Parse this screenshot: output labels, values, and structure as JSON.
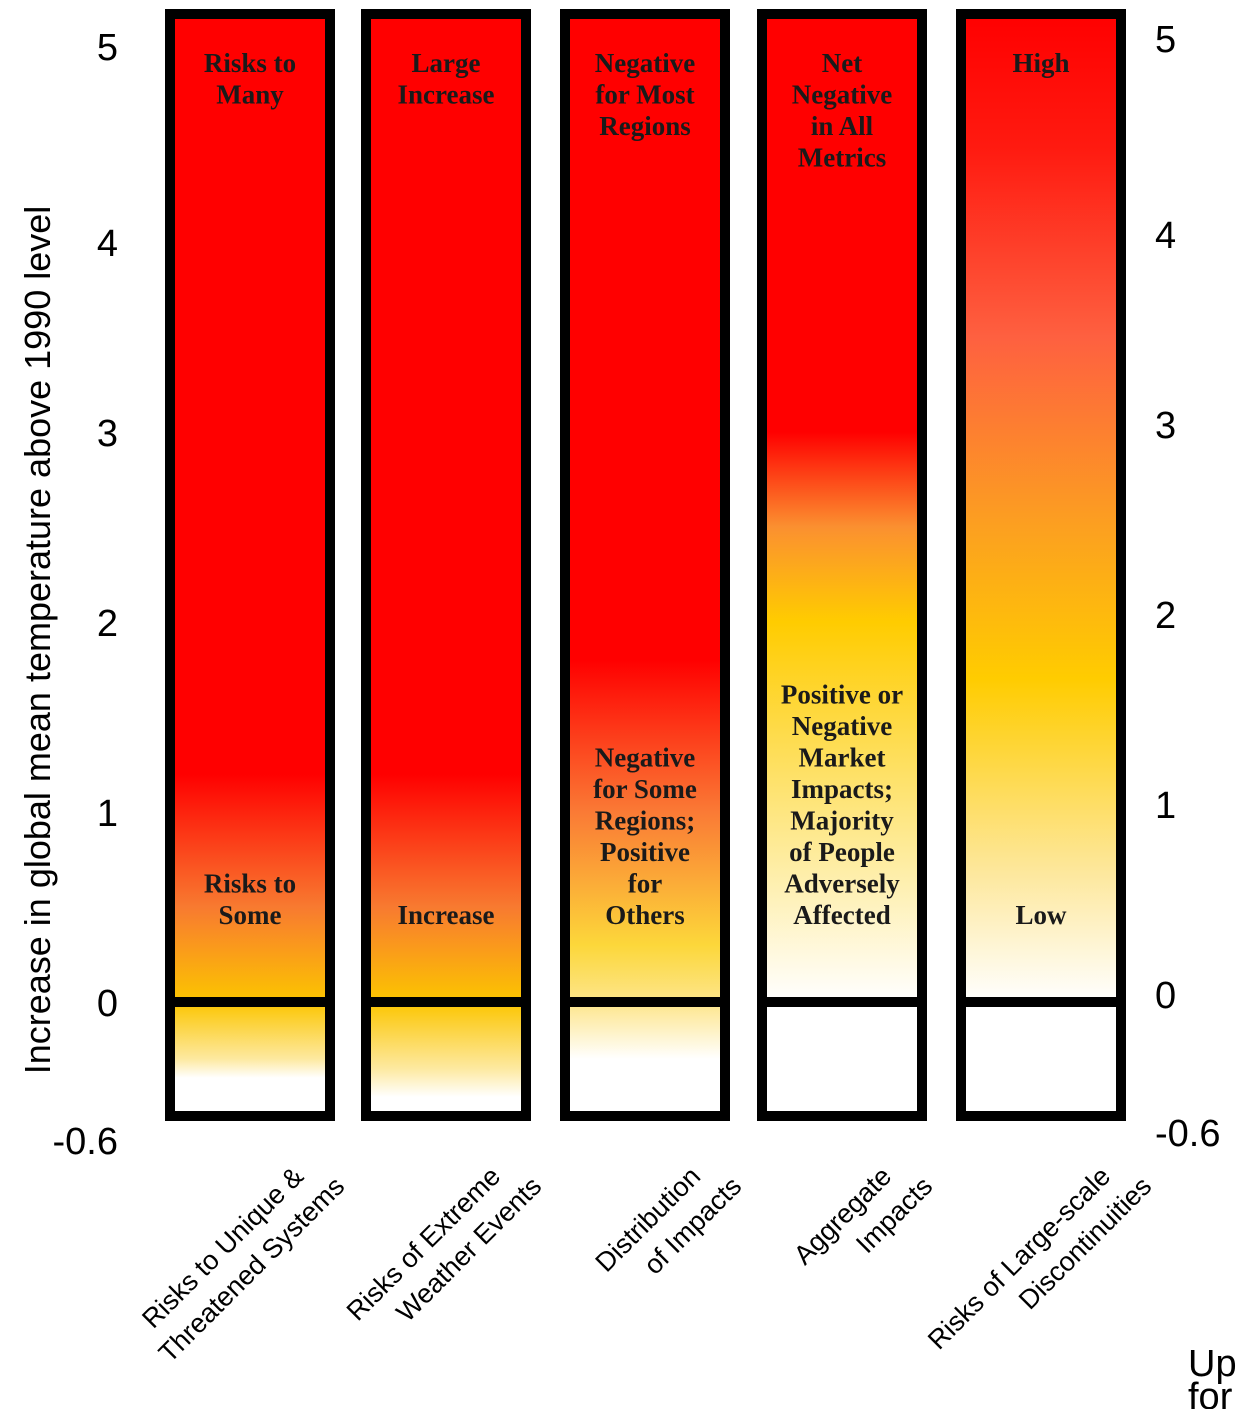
{
  "chart_data": {
    "type": "bar",
    "ylabel": "Increase in global mean temperature above 1990 level",
    "ylim": [
      -0.6,
      5.2
    ],
    "y_ticks": [
      "5",
      "4",
      "3",
      "2",
      "1",
      "0",
      "-0.6"
    ],
    "y_tick_values": [
      5,
      4,
      3,
      2,
      1,
      0,
      -0.6
    ],
    "categories": [
      "Risks to Unique & Threatened Systems",
      "Risks of Extreme Weather Events",
      "Distribution of Impacts",
      "Aggregate Impacts",
      "Risks of Large-scale Discontinuities"
    ],
    "category_lines": [
      [
        "Risks to Unique &",
        "Threatened Systems"
      ],
      [
        "Risks of Extreme",
        "Weather Events"
      ],
      [
        "Distribution",
        "of Impacts"
      ],
      [
        "Aggregate",
        "Impacts"
      ],
      [
        "Risks of Large-scale",
        "Discontinuities"
      ]
    ],
    "bars": [
      {
        "top_label": [
          "Risks to",
          "Many"
        ],
        "bottom_label": [
          "Risks to",
          "Some"
        ],
        "gradient": [
          {
            "t": 5.2,
            "color": "#ff0000"
          },
          {
            "t": 1.2,
            "color": "#ff0000"
          },
          {
            "t": 0.5,
            "color": "#f87a30"
          },
          {
            "t": 0.0,
            "color": "#fcc500"
          },
          {
            "t": -0.3,
            "color": "#fde9a0"
          },
          {
            "t": -0.4,
            "color": "#ffffff"
          }
        ]
      },
      {
        "top_label": [
          "Large",
          "Increase"
        ],
        "bottom_label": [
          "Increase"
        ],
        "gradient": [
          {
            "t": 5.2,
            "color": "#ff0000"
          },
          {
            "t": 1.2,
            "color": "#ff0000"
          },
          {
            "t": 0.5,
            "color": "#f87a30"
          },
          {
            "t": 0.0,
            "color": "#fcc500"
          },
          {
            "t": -0.35,
            "color": "#fde9a0"
          },
          {
            "t": -0.5,
            "color": "#ffffff"
          }
        ]
      },
      {
        "top_label": [
          "Negative",
          "for Most",
          "Regions"
        ],
        "bottom_label": [
          "Negative",
          "for Some",
          "Regions;",
          "Positive",
          "for",
          "Others"
        ],
        "gradient": [
          {
            "t": 5.2,
            "color": "#ff0000"
          },
          {
            "t": 1.8,
            "color": "#ff0000"
          },
          {
            "t": 1.0,
            "color": "#fa7a35"
          },
          {
            "t": 0.3,
            "color": "#fcd73a"
          },
          {
            "t": 0.0,
            "color": "#fde58a"
          },
          {
            "t": -0.3,
            "color": "#ffffff"
          }
        ]
      },
      {
        "top_label": [
          "Net",
          "Negative",
          "in All",
          "Metrics"
        ],
        "bottom_label": [
          "Positive or",
          "Negative",
          "Market",
          "Impacts;",
          "Majority",
          "of People",
          "Adversely",
          "Affected"
        ],
        "gradient": [
          {
            "t": 5.2,
            "color": "#ff0000"
          },
          {
            "t": 3.0,
            "color": "#ff0000"
          },
          {
            "t": 2.5,
            "color": "#fb9030"
          },
          {
            "t": 2.0,
            "color": "#ffcc00"
          },
          {
            "t": 1.0,
            "color": "#fee680"
          },
          {
            "t": 0.0,
            "color": "#ffffff"
          }
        ]
      },
      {
        "top_label": [
          "High"
        ],
        "bottom_label": [
          "Low"
        ],
        "gradient": [
          {
            "t": 5.2,
            "color": "#ff0000"
          },
          {
            "t": 4.5,
            "color": "#ff1a10"
          },
          {
            "t": 3.5,
            "color": "#fe6040"
          },
          {
            "t": 2.5,
            "color": "#fca020"
          },
          {
            "t": 1.7,
            "color": "#ffcc00"
          },
          {
            "t": 0.7,
            "color": "#fde79a"
          },
          {
            "t": 0.0,
            "color": "#ffffff"
          }
        ]
      }
    ],
    "corner_text": [
      "Up",
      "for"
    ]
  }
}
